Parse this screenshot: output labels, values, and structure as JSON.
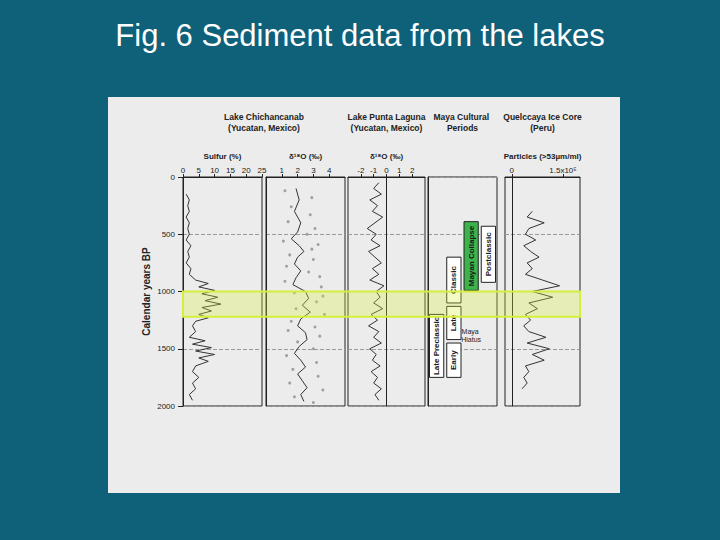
{
  "title": "Fig. 6 Sediment data from the lakes",
  "highlight": {
    "years": [
      1000,
      1220
    ],
    "color": "#d6ee3c"
  },
  "chart_data": [
    {
      "type": "line",
      "title": "Lake Chichancanab (Yucatan, Mexico)",
      "xlabel": "Sulfur (%)",
      "ylabel": "Calendar years BP",
      "xlim": [
        0,
        25
      ],
      "xticks": [
        0,
        5,
        10,
        15,
        20,
        25
      ],
      "ylim": [
        0,
        2000
      ],
      "yticks": [
        0,
        500,
        1000,
        1500,
        2000
      ],
      "grid": true,
      "series": [
        {
          "type": "line",
          "color": "#333333",
          "x": [
            1,
            2,
            1.5,
            2,
            1,
            2,
            1.5,
            2,
            1,
            2.5,
            1.5,
            2,
            1,
            2.5,
            2,
            4,
            8,
            5,
            10,
            6,
            11,
            7,
            12,
            6,
            9,
            5,
            8,
            4,
            3,
            4,
            2,
            7,
            3,
            9,
            4,
            10,
            5,
            8,
            4,
            3,
            5,
            3,
            4,
            2,
            3
          ],
          "y": [
            150,
            200,
            250,
            300,
            350,
            400,
            450,
            500,
            550,
            600,
            650,
            700,
            750,
            800,
            850,
            900,
            930,
            960,
            990,
            1020,
            1050,
            1080,
            1110,
            1140,
            1170,
            1200,
            1230,
            1260,
            1300,
            1350,
            1400,
            1430,
            1460,
            1490,
            1520,
            1550,
            1580,
            1610,
            1650,
            1700,
            1750,
            1800,
            1850,
            1900,
            1950
          ]
        }
      ]
    },
    {
      "type": "scatter",
      "xlabel": "δ¹⁸O (‰)",
      "xlim": [
        0,
        5
      ],
      "xticks": [
        1,
        2,
        3,
        4
      ],
      "ylim": [
        0,
        2000
      ],
      "yticks": [
        0,
        500,
        1000,
        1500,
        2000
      ],
      "grid": true,
      "tick_labels": "x",
      "series": [
        {
          "type": "scatter",
          "color": "#8c8c8c",
          "x": [
            1.2,
            2.9,
            1.6,
            2.8,
            1.4,
            3.1,
            2.6,
            1.1,
            3.3,
            2.9,
            1.5,
            3.0,
            1.3,
            2.7,
            3.4,
            1.2,
            3.5,
            1.8,
            3.6,
            3.2,
            1.9,
            3.7,
            1.6,
            3.1,
            1.4,
            3.4,
            2.0,
            3.0,
            1.3,
            3.2,
            1.7,
            3.3,
            1.5,
            3.6,
            1.8,
            3.0
          ],
          "y": [
            120,
            180,
            260,
            330,
            390,
            450,
            500,
            560,
            590,
            630,
            680,
            720,
            780,
            830,
            870,
            910,
            960,
            1010,
            1040,
            1090,
            1150,
            1200,
            1260,
            1310,
            1340,
            1390,
            1440,
            1500,
            1560,
            1620,
            1680,
            1740,
            1800,
            1860,
            1920,
            1970
          ]
        },
        {
          "type": "line",
          "color": "#333333",
          "x": [
            1.9,
            2.1,
            1.8,
            2.2,
            2.0,
            1.6,
            2.1,
            2.4,
            2.0,
            1.8,
            2.2,
            1.9,
            1.7,
            2.5,
            2.7,
            2.3,
            2.8,
            2.2,
            2.0,
            2.5,
            2.6,
            2.1,
            1.8,
            2.2,
            2.5,
            2.0,
            2.3,
            2.6,
            2.2,
            2.4
          ],
          "y": [
            100,
            200,
            300,
            400,
            480,
            540,
            600,
            650,
            700,
            760,
            820,
            880,
            940,
            1000,
            1060,
            1120,
            1180,
            1240,
            1300,
            1360,
            1420,
            1480,
            1540,
            1600,
            1660,
            1720,
            1780,
            1840,
            1900,
            1960
          ]
        }
      ]
    },
    {
      "type": "line",
      "title": "Lake Punta Laguna (Yucatan, Mexico)",
      "xlabel": "δ¹⁸O (‰)",
      "xlim": [
        -3,
        3
      ],
      "xticks": [
        -2,
        -1,
        0,
        1,
        2
      ],
      "ylim": [
        0,
        2000
      ],
      "yticks": [
        0,
        500,
        1000,
        1500,
        2000
      ],
      "grid": true,
      "tick_labels": "x",
      "series": [
        {
          "type": "line",
          "color": "#333333",
          "x": [
            -0.6,
            -1.0,
            -0.4,
            -1.3,
            -0.7,
            -1.1,
            -0.3,
            -0.9,
            -1.5,
            -0.8,
            -1.2,
            -0.5,
            -1.4,
            -0.9,
            -0.4,
            -1.1,
            -0.6,
            -1.3,
            -0.2,
            -0.8,
            -0.5,
            -1.0,
            -0.3,
            -1.2,
            -0.7,
            -1.4,
            -0.6,
            -1.0,
            -0.4,
            -1.3,
            -0.8,
            -1.1,
            -0.5,
            -1.2,
            -0.7,
            -1.0,
            -0.4,
            -0.9,
            -0.6
          ],
          "y": [
            50,
            100,
            150,
            200,
            250,
            300,
            350,
            400,
            450,
            500,
            550,
            600,
            650,
            700,
            750,
            800,
            850,
            900,
            950,
            1000,
            1050,
            1100,
            1150,
            1200,
            1250,
            1300,
            1350,
            1400,
            1450,
            1500,
            1550,
            1600,
            1650,
            1700,
            1750,
            1800,
            1850,
            1900,
            1950
          ]
        }
      ]
    },
    {
      "type": "timeline",
      "title": "Maya Cultural Periods",
      "ylim": [
        0,
        2000
      ],
      "yticks": [
        0,
        500,
        1000,
        1500,
        2000
      ],
      "grid": true,
      "tick_labels": false,
      "columns": [
        [
          {
            "label": "Late Preclassic",
            "start": 1200,
            "end": 1750,
            "color": "#ffffff"
          }
        ],
        [
          {
            "label": "Classic",
            "start": 700,
            "end": 1100,
            "color": "#ffffff"
          },
          {
            "label": "Late",
            "start": 1130,
            "end": 1420,
            "color": "#ffffff"
          },
          {
            "label": "Early",
            "start": 1450,
            "end": 1750,
            "color": "#ffffff"
          }
        ],
        [
          {
            "label": "Mayan Collapse",
            "start": 390,
            "end": 990,
            "color": "#3cb44b"
          },
          {
            "label": "Maya Hiatus",
            "start": 1330,
            "end": 1440
          }
        ],
        [
          {
            "label": "Postclassic",
            "start": 430,
            "end": 920,
            "color": "#ffffff"
          }
        ]
      ]
    },
    {
      "type": "line",
      "title": "Quelccaya Ice Core (Peru)",
      "xlabel": "Particles (>53µm/ml)",
      "xlim": [
        -20000,
        200000
      ],
      "xticks": [
        0,
        {
          "value": 150000,
          "label": "1.5x10⁵"
        }
      ],
      "ylim": [
        0,
        2000
      ],
      "yticks": [
        0,
        500,
        1000,
        1500,
        2000
      ],
      "grid": true,
      "tick_labels": "x",
      "series": [
        {
          "type": "line",
          "color": "#333333",
          "x": [
            60000,
            45000,
            95000,
            50000,
            40000,
            70000,
            35000,
            55000,
            80000,
            45000,
            60000,
            40000,
            90000,
            140000,
            60000,
            120000,
            50000,
            75000,
            40000,
            55000,
            35000,
            50000,
            100000,
            45000,
            110000,
            60000,
            95000,
            40000,
            50000,
            35000,
            45000,
            30000
          ],
          "y": [
            300,
            350,
            400,
            450,
            500,
            550,
            600,
            650,
            700,
            750,
            800,
            850,
            900,
            950,
            1000,
            1050,
            1100,
            1150,
            1200,
            1250,
            1300,
            1350,
            1400,
            1450,
            1500,
            1550,
            1600,
            1650,
            1700,
            1750,
            1800,
            1850
          ]
        }
      ]
    }
  ]
}
